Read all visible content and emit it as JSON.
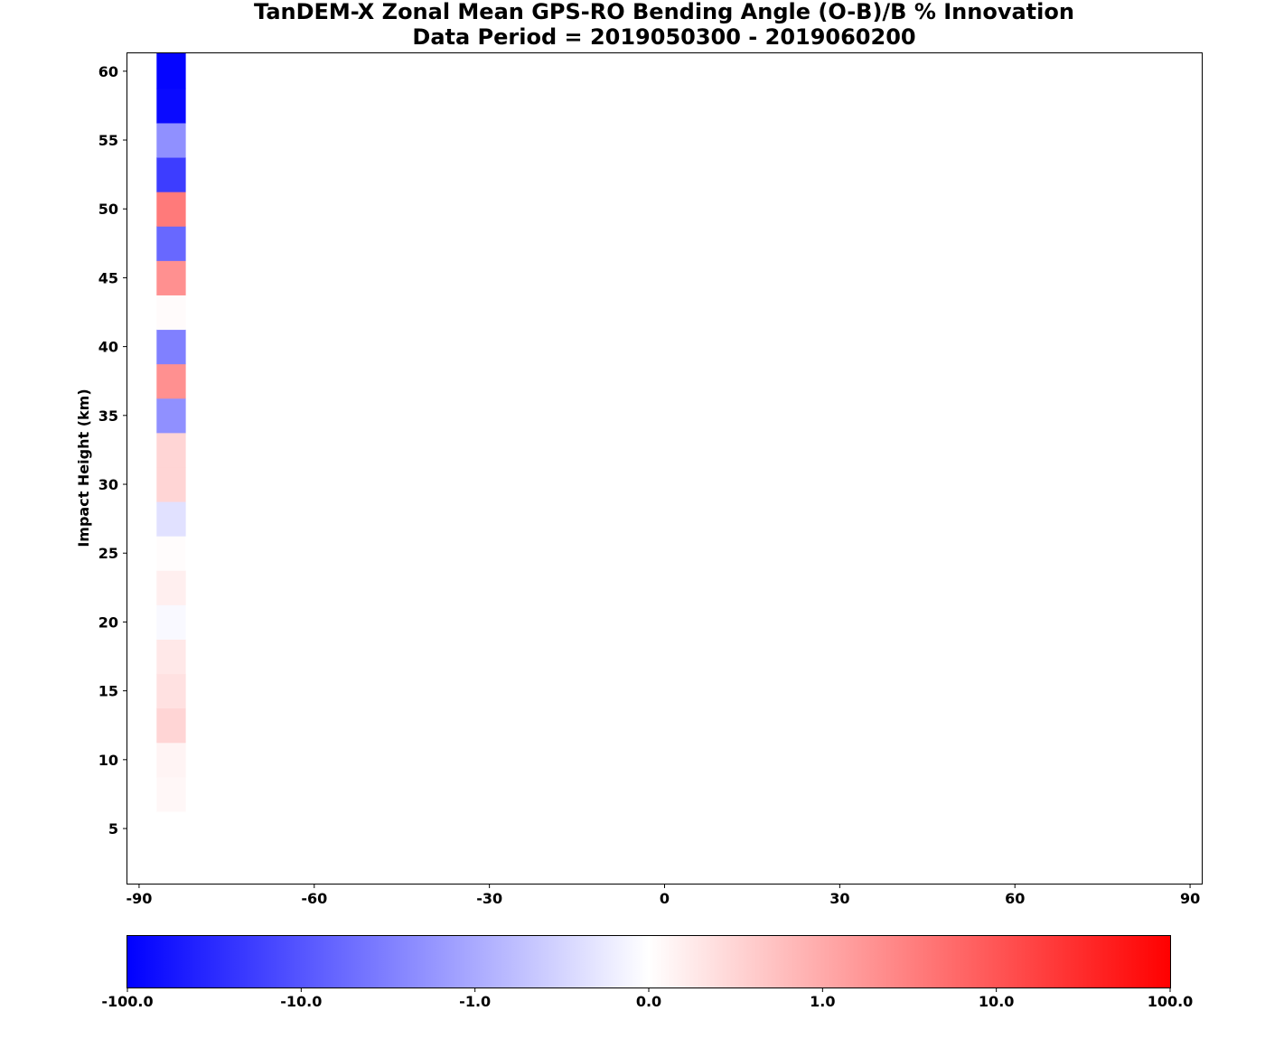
{
  "chart_data": {
    "type": "heatmap",
    "title_line1": "TanDEM-X Zonal Mean GPS-RO Bending Angle (O-B)/B % Innovation",
    "title_line2": "Data Period = 2019050300 - 2019060200",
    "xlabel": "",
    "ylabel": "Impact Height (km)",
    "xlim": [
      -92,
      92
    ],
    "ylim": [
      1,
      61.3
    ],
    "x_ticks": [
      "-90",
      "-60",
      "-30",
      "0",
      "30",
      "60",
      "90"
    ],
    "y_ticks": [
      "5",
      "10",
      "15",
      "20",
      "25",
      "30",
      "35",
      "40",
      "45",
      "50",
      "55",
      "60"
    ],
    "grid": false,
    "column": {
      "lat_from": -87,
      "lat_to": -82,
      "cells": [
        {
          "z_from": 6.25,
          "z_to": 8.75,
          "value": 0.1
        },
        {
          "z_from": 8.75,
          "z_to": 11.25,
          "value": 0.13
        },
        {
          "z_from": 11.25,
          "z_to": 13.75,
          "value": 0.6
        },
        {
          "z_from": 13.75,
          "z_to": 16.25,
          "value": 0.4
        },
        {
          "z_from": 16.25,
          "z_to": 18.75,
          "value": 0.3
        },
        {
          "z_from": 18.75,
          "z_to": 21.25,
          "value": -0.07
        },
        {
          "z_from": 21.25,
          "z_to": 23.75,
          "value": 0.2
        },
        {
          "z_from": 23.75,
          "z_to": 26.25,
          "value": 0.03
        },
        {
          "z_from": 26.25,
          "z_to": 28.75,
          "value": -0.4
        },
        {
          "z_from": 28.75,
          "z_to": 31.25,
          "value": 0.6
        },
        {
          "z_from": 31.25,
          "z_to": 33.75,
          "value": 0.6
        },
        {
          "z_from": 33.75,
          "z_to": 36.25,
          "value": -2.5
        },
        {
          "z_from": 36.25,
          "z_to": 38.75,
          "value": 2.5
        },
        {
          "z_from": 38.75,
          "z_to": 41.25,
          "value": -3.2
        },
        {
          "z_from": 41.25,
          "z_to": 43.75,
          "value": 0.05
        },
        {
          "z_from": 43.75,
          "z_to": 46.25,
          "value": 2.5
        },
        {
          "z_from": 46.25,
          "z_to": 48.75,
          "value": -4.5
        },
        {
          "z_from": 48.75,
          "z_to": 51.25,
          "value": 3.5
        },
        {
          "z_from": 51.25,
          "z_to": 53.75,
          "value": -8
        },
        {
          "z_from": 53.75,
          "z_to": 56.25,
          "value": -2.5
        },
        {
          "z_from": 56.25,
          "z_to": 58.75,
          "value": -15
        },
        {
          "z_from": 58.75,
          "z_to": 61.3,
          "value": -16
        }
      ]
    },
    "colorbar": {
      "tick_labels": [
        "-100.0",
        "-10.0",
        "-1.0",
        "0.0",
        "1.0",
        "10.0",
        "100.0"
      ],
      "colors": [
        "#0000ff",
        "#ffffff",
        "#ff0000"
      ],
      "orientation": "horizontal",
      "placement": "bottom"
    }
  }
}
